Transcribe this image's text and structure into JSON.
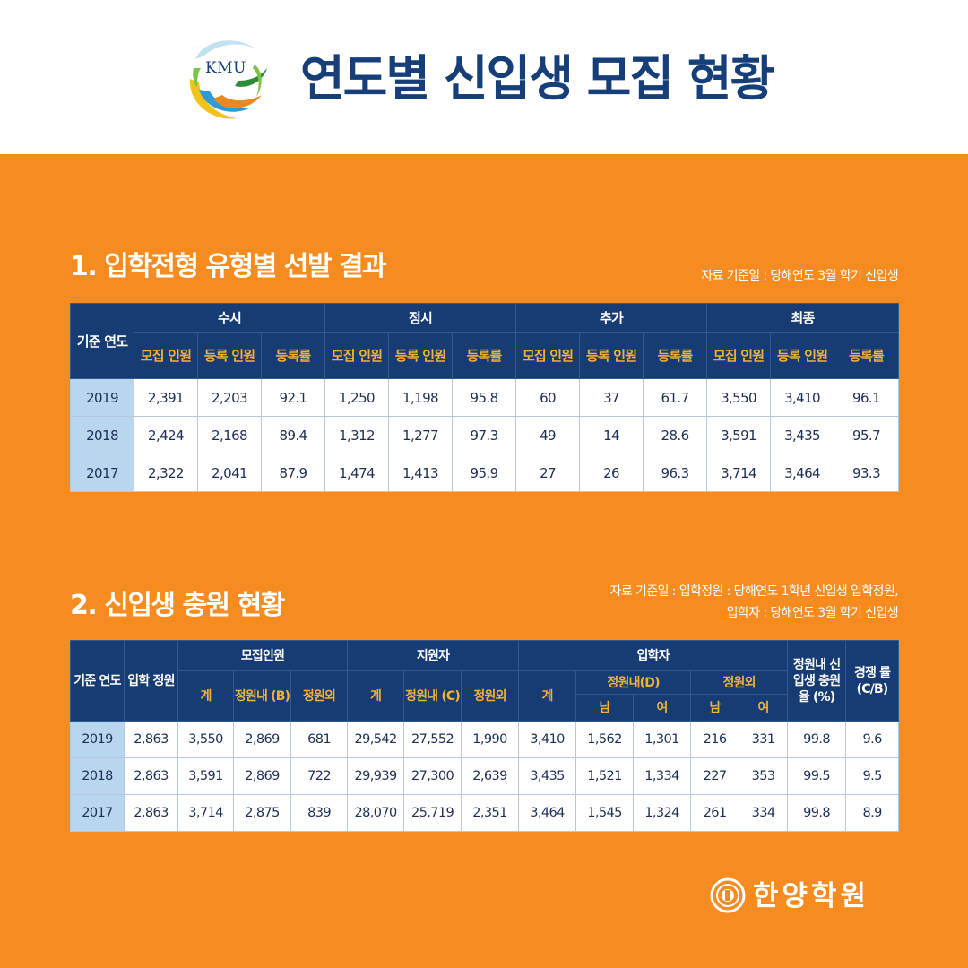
{
  "header": {
    "logo_text": "KMU",
    "title": "연도별 신입생 모집 현황"
  },
  "section1": {
    "title": "1. 입학전형 유형별 선발 결과",
    "note": "자료 기준일 : 당해연도 3월 학기 신입생",
    "year_header": "기준 연도",
    "groups": [
      "수시",
      "정시",
      "추가",
      "최종"
    ],
    "subheaders": [
      "모집 인원",
      "등록 인원",
      "등록률"
    ],
    "rows": [
      {
        "year": "2019",
        "cells": [
          "2,391",
          "2,203",
          "92.1",
          "1,250",
          "1,198",
          "95.8",
          "60",
          "37",
          "61.7",
          "3,550",
          "3,410",
          "96.1"
        ]
      },
      {
        "year": "2018",
        "cells": [
          "2,424",
          "2,168",
          "89.4",
          "1,312",
          "1,277",
          "97.3",
          "49",
          "14",
          "28.6",
          "3,591",
          "3,435",
          "95.7"
        ]
      },
      {
        "year": "2017",
        "cells": [
          "2,322",
          "2,041",
          "87.9",
          "1,474",
          "1,413",
          "95.9",
          "27",
          "26",
          "96.3",
          "3,714",
          "3,464",
          "93.3"
        ]
      }
    ]
  },
  "section2": {
    "title": "2. 신입생 충원 현황",
    "note_line1": "자료 기준일 : 입학정원 : 당해연도 1학년 신입생 입학정원,",
    "note_line2": "입학자 : 당해연도 3월 학기 신입생",
    "headers": {
      "year": "기준 연도",
      "quota": "입학 정원",
      "recruit": "모집인원",
      "applicants": "지원자",
      "admitted": "입학자",
      "fill_rate": "정원내 신입생 충원율 (%)",
      "competition": "경쟁 률 (C/B)",
      "total": "계",
      "in_quota_b": "정원내 (B)",
      "in_quota_c": "정원내 (C)",
      "out_quota": "정원외",
      "in_quota_d": "정원내(D)",
      "male": "남",
      "female": "여"
    },
    "rows": [
      {
        "year": "2019",
        "cells": [
          "2,863",
          "3,550",
          "2,869",
          "681",
          "29,542",
          "27,552",
          "1,990",
          "3,410",
          "1,562",
          "1,301",
          "216",
          "331",
          "99.8",
          "9.6"
        ]
      },
      {
        "year": "2018",
        "cells": [
          "2,863",
          "3,591",
          "2,869",
          "722",
          "29,939",
          "27,300",
          "2,639",
          "3,435",
          "1,521",
          "1,334",
          "227",
          "353",
          "99.5",
          "9.5"
        ]
      },
      {
        "year": "2017",
        "cells": [
          "2,863",
          "3,714",
          "2,875",
          "839",
          "28,070",
          "25,719",
          "2,351",
          "3,464",
          "1,545",
          "1,324",
          "261",
          "334",
          "99.8",
          "8.9"
        ]
      }
    ]
  },
  "footer": {
    "org_name": "한양학원"
  },
  "colors": {
    "background": "#f68b1f",
    "header_navy": "#173c73",
    "subheader_gold": "#f2b235",
    "year_cell": "#b9d6ef",
    "title_navy": "#163f7a"
  }
}
